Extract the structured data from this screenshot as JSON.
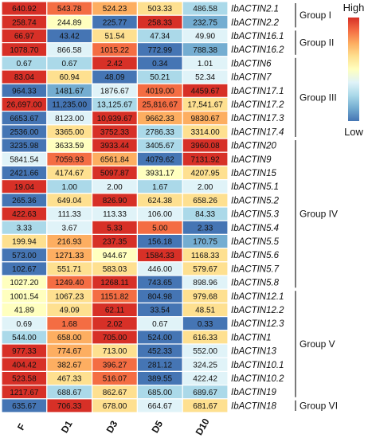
{
  "chart_data": {
    "type": "heatmap",
    "columns": [
      "F",
      "D1",
      "D3",
      "D5",
      "D10"
    ],
    "rows": [
      {
        "label": "IbACTIN2.1",
        "values": [
          "640.92",
          "543.78",
          "524.23",
          "503.33",
          "486.58"
        ],
        "colors": [
          "#d73027",
          "#f46d43",
          "#fdae61",
          "#fee090",
          "#abd9e9"
        ]
      },
      {
        "label": "IbACTIN2.2",
        "values": [
          "258.74",
          "244.89",
          "225.77",
          "258.33",
          "232.75"
        ],
        "colors": [
          "#d73027",
          "#ffffbf",
          "#4575b4",
          "#d73027",
          "#74add1"
        ]
      },
      {
        "label": "IbACTIN16.1",
        "values": [
          "66.97",
          "43.42",
          "51.54",
          "47.34",
          "49.90"
        ],
        "colors": [
          "#d73027",
          "#4575b4",
          "#fee090",
          "#abd9e9",
          "#e0f3f8"
        ]
      },
      {
        "label": "IbACTIN16.2",
        "values": [
          "1078.70",
          "866.58",
          "1015.22",
          "772.99",
          "788.38"
        ],
        "colors": [
          "#d73027",
          "#e0f3f8",
          "#f46d43",
          "#4575b4",
          "#74add1"
        ]
      },
      {
        "label": "IbACTIN6",
        "values": [
          "0.67",
          "0.67",
          "2.42",
          "0.34",
          "1.01"
        ],
        "colors": [
          "#abd9e9",
          "#abd9e9",
          "#d73027",
          "#4575b4",
          "#e0f3f8"
        ]
      },
      {
        "label": "IbACTIN7",
        "values": [
          "83.04",
          "60.94",
          "48.09",
          "50.21",
          "52.34"
        ],
        "colors": [
          "#d73027",
          "#fee090",
          "#4575b4",
          "#abd9e9",
          "#e0f3f8"
        ]
      },
      {
        "label": "IbACTIN17.1",
        "values": [
          "964.33",
          "1481.67",
          "1876.67",
          "4019.00",
          "4459.67"
        ],
        "colors": [
          "#4575b4",
          "#74add1",
          "#e0f3f8",
          "#f46d43",
          "#d73027"
        ]
      },
      {
        "label": "IbACTIN17.2",
        "values": [
          "26,697.00",
          "11,235.00",
          "13,125.67",
          "25,816.67",
          "17,541.67"
        ],
        "colors": [
          "#d73027",
          "#4575b4",
          "#abd9e9",
          "#f46d43",
          "#fee090"
        ]
      },
      {
        "label": "IbACTIN17.3",
        "values": [
          "6653.67",
          "8123.00",
          "10,939.67",
          "9662.33",
          "9830.67"
        ],
        "colors": [
          "#4575b4",
          "#e0f3f8",
          "#d73027",
          "#fdae61",
          "#fdae61"
        ]
      },
      {
        "label": "IbACTIN17.4",
        "values": [
          "2536.00",
          "3365.00",
          "3752.33",
          "2786.33",
          "3314.00"
        ],
        "colors": [
          "#4575b4",
          "#fee090",
          "#d73027",
          "#abd9e9",
          "#fee090"
        ]
      },
      {
        "label": "IbACTIN20",
        "values": [
          "3235.98",
          "3633.59",
          "3933.44",
          "3405.67",
          "3960.08"
        ],
        "colors": [
          "#4575b4",
          "#ffffbf",
          "#d73027",
          "#abd9e9",
          "#d73027"
        ]
      },
      {
        "label": "IbACTIN9",
        "values": [
          "5841.54",
          "7059.93",
          "6561.84",
          "4079.62",
          "7131.92"
        ],
        "colors": [
          "#e0f3f8",
          "#f46d43",
          "#fdae61",
          "#4575b4",
          "#d73027"
        ]
      },
      {
        "label": "IbACTIN15",
        "values": [
          "2421.66",
          "4174.67",
          "5097.87",
          "3931.17",
          "4207.95"
        ],
        "colors": [
          "#4575b4",
          "#fee090",
          "#d73027",
          "#ffffbf",
          "#fee090"
        ]
      },
      {
        "label": "IbACTIN5.1",
        "values": [
          "19.04",
          "1.00",
          "2.00",
          "1.67",
          "2.00"
        ],
        "colors": [
          "#d73027",
          "#abd9e9",
          "#e0f3f8",
          "#abd9e9",
          "#e0f3f8"
        ]
      },
      {
        "label": "IbACTIN5.2",
        "values": [
          "265.36",
          "649.04",
          "826.90",
          "624.38",
          "658.26"
        ],
        "colors": [
          "#4575b4",
          "#fee090",
          "#d73027",
          "#fee090",
          "#fee090"
        ]
      },
      {
        "label": "IbACTIN5.3",
        "values": [
          "422.63",
          "111.33",
          "113.33",
          "106.00",
          "84.33"
        ],
        "colors": [
          "#d73027",
          "#e0f3f8",
          "#e0f3f8",
          "#e0f3f8",
          "#abd9e9"
        ]
      },
      {
        "label": "IbACTIN5.4",
        "values": [
          "3.33",
          "3.67",
          "5.33",
          "5.00",
          "2.33"
        ],
        "colors": [
          "#abd9e9",
          "#e0f3f8",
          "#d73027",
          "#f46d43",
          "#4575b4"
        ]
      },
      {
        "label": "IbACTIN5.5",
        "values": [
          "199.94",
          "216.93",
          "237.35",
          "156.18",
          "170.75"
        ],
        "colors": [
          "#fee090",
          "#fdae61",
          "#d73027",
          "#4575b4",
          "#74add1"
        ]
      },
      {
        "label": "IbACTIN5.6",
        "values": [
          "573.00",
          "1271.33",
          "944.67",
          "1584.33",
          "1168.33"
        ],
        "colors": [
          "#4575b4",
          "#fdae61",
          "#ffffbf",
          "#d73027",
          "#fee090"
        ]
      },
      {
        "label": "IbACTIN5.7",
        "values": [
          "102.67",
          "551.71",
          "583.03",
          "446.00",
          "579.67"
        ],
        "colors": [
          "#4575b4",
          "#fee090",
          "#fee090",
          "#e0f3f8",
          "#fee090"
        ]
      },
      {
        "label": "IbACTIN5.8",
        "values": [
          "1027.20",
          "1249.40",
          "1268.11",
          "743.65",
          "898.96"
        ],
        "colors": [
          "#ffffbf",
          "#f46d43",
          "#d73027",
          "#4575b4",
          "#e0f3f8"
        ]
      },
      {
        "label": "IbACTIN12.1",
        "values": [
          "1001.54",
          "1067.23",
          "1151.82",
          "804.98",
          "979.68"
        ],
        "colors": [
          "#ffffbf",
          "#fee090",
          "#f46d43",
          "#4575b4",
          "#fee090"
        ]
      },
      {
        "label": "IbACTIN12.2",
        "values": [
          "41.89",
          "49.09",
          "62.11",
          "33.54",
          "48.51"
        ],
        "colors": [
          "#ffffbf",
          "#fee090",
          "#d73027",
          "#4575b4",
          "#fee090"
        ]
      },
      {
        "label": "IbACTIN12.3",
        "values": [
          "0.69",
          "1.68",
          "2.02",
          "0.67",
          "0.33"
        ],
        "colors": [
          "#e0f3f8",
          "#f46d43",
          "#d73027",
          "#e0f3f8",
          "#4575b4"
        ]
      },
      {
        "label": "IbACTIN1",
        "values": [
          "544.00",
          "658.00",
          "705.00",
          "524.00",
          "616.33"
        ],
        "colors": [
          "#abd9e9",
          "#fdae61",
          "#d73027",
          "#4575b4",
          "#fee090"
        ]
      },
      {
        "label": "IbACTIN13",
        "values": [
          "977.33",
          "774.67",
          "713.00",
          "452.33",
          "552.00"
        ],
        "colors": [
          "#d73027",
          "#fdae61",
          "#fee090",
          "#4575b4",
          "#e0f3f8"
        ]
      },
      {
        "label": "IbACTIN10.1",
        "values": [
          "404.42",
          "382.67",
          "396.27",
          "281.12",
          "324.25"
        ],
        "colors": [
          "#d73027",
          "#fdae61",
          "#f46d43",
          "#4575b4",
          "#e0f3f8"
        ]
      },
      {
        "label": "IbACTIN10.2",
        "values": [
          "523.58",
          "467.33",
          "516.07",
          "389.55",
          "422.42"
        ],
        "colors": [
          "#d73027",
          "#fee090",
          "#f46d43",
          "#4575b4",
          "#e0f3f8"
        ]
      },
      {
        "label": "IbACTIN19",
        "values": [
          "1217.67",
          "688.67",
          "862.67",
          "685.00",
          "689.67"
        ],
        "colors": [
          "#d73027",
          "#abd9e9",
          "#fee090",
          "#abd9e9",
          "#abd9e9"
        ]
      },
      {
        "label": "IbACTIN18",
        "values": [
          "635.67",
          "706.33",
          "678.00",
          "664.67",
          "681.67"
        ],
        "colors": [
          "#4575b4",
          "#d73027",
          "#fee090",
          "#e0f3f8",
          "#fee090"
        ]
      }
    ],
    "groups": [
      {
        "name": "Group I",
        "start": 0,
        "end": 1
      },
      {
        "name": "Group II",
        "start": 2,
        "end": 3
      },
      {
        "name": "Group III",
        "start": 4,
        "end": 9
      },
      {
        "name": "Group IV",
        "start": 10,
        "end": 20
      },
      {
        "name": "Group V",
        "start": 21,
        "end": 28
      },
      {
        "name": "Group VI",
        "start": 29,
        "end": 29
      }
    ],
    "legend": {
      "high_label": "High",
      "low_label": "Low",
      "gradient": [
        "#d73027",
        "#f46d43",
        "#fdae61",
        "#fee090",
        "#ffffbf",
        "#e0f3f8",
        "#abd9e9",
        "#74add1",
        "#4575b4"
      ]
    }
  }
}
